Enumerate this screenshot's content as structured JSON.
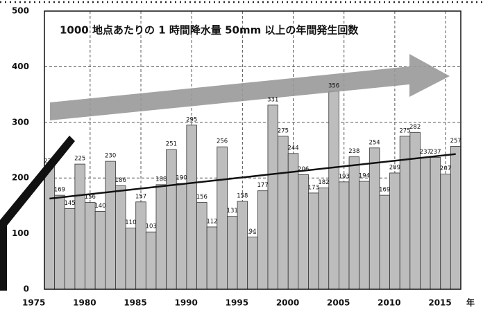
{
  "chart_data": {
    "type": "bar",
    "title": "1000 地点あたりの 1 時間降水量 50mm 以上の年間発生回数",
    "x_unit": "年",
    "x": [
      1976,
      1977,
      1978,
      1979,
      1980,
      1981,
      1982,
      1983,
      1984,
      1985,
      1986,
      1987,
      1988,
      1989,
      1990,
      1991,
      1992,
      1993,
      1994,
      1995,
      1996,
      1997,
      1998,
      1999,
      2000,
      2001,
      2002,
      2003,
      2004,
      2005,
      2006,
      2007,
      2008,
      2009,
      2010,
      2011,
      2012,
      2013,
      2014,
      2015,
      2016
    ],
    "values": [
      220,
      169,
      145,
      225,
      156,
      140,
      230,
      186,
      110,
      157,
      103,
      188,
      251,
      190,
      295,
      156,
      112,
      256,
      131,
      158,
      94,
      177,
      331,
      275,
      244,
      206,
      173,
      182,
      356,
      193,
      238,
      194,
      254,
      169,
      209,
      275,
      282,
      237,
      237,
      207,
      257
    ],
    "color": "#bdbdbd",
    "trend": {
      "x": [
        1976,
        2016
      ],
      "values": [
        163,
        243
      ],
      "color": "#111111"
    },
    "xlim": [
      1975.5,
      2016.5
    ],
    "xticks": [
      1975,
      1980,
      1985,
      1990,
      1995,
      2000,
      2005,
      2010,
      2015
    ],
    "ylim": [
      0,
      500
    ],
    "yticks": [
      0,
      100,
      200,
      300,
      400,
      500
    ],
    "grid": true
  }
}
